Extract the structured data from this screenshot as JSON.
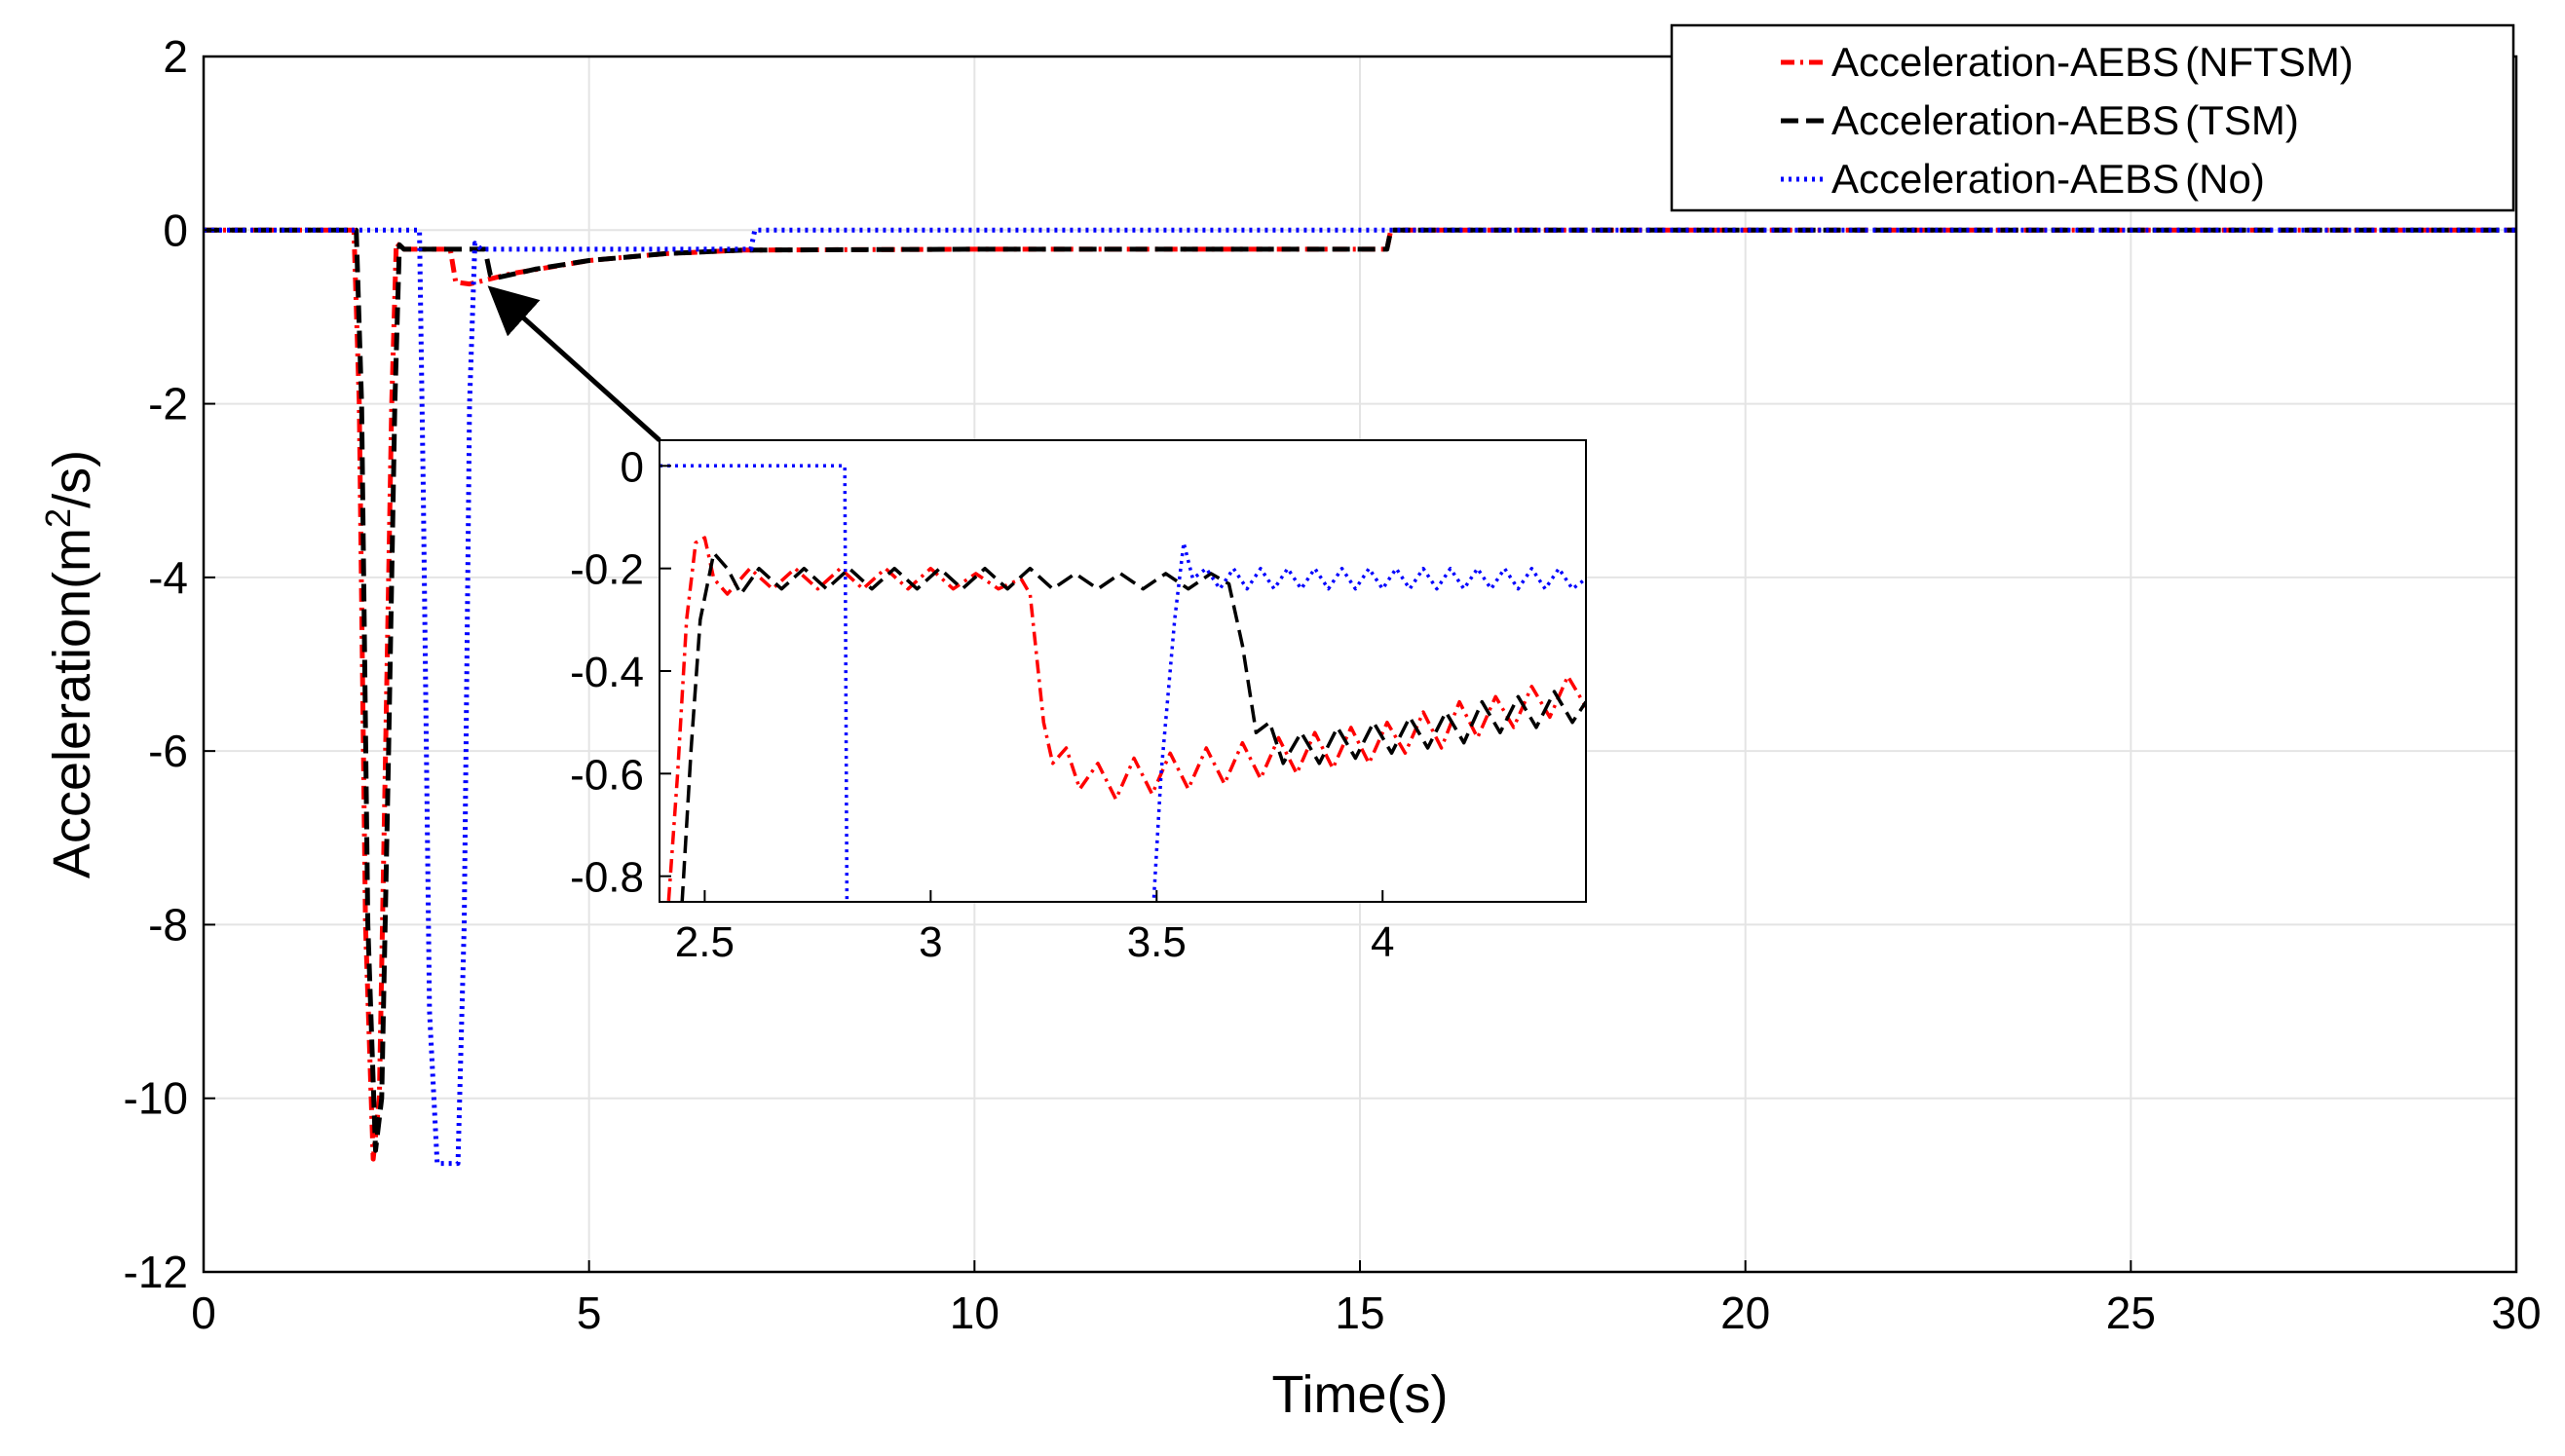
{
  "chart_data": {
    "type": "line",
    "title": "",
    "xlabel": "Time(s)",
    "ylabel_base": "Acceleration(m",
    "ylabel_sup": "2",
    "ylabel_tail": "/s)",
    "xlim": [
      0,
      30
    ],
    "ylim": [
      -12,
      2
    ],
    "xticks": [
      0,
      5,
      10,
      15,
      20,
      25,
      30
    ],
    "yticks": [
      -12,
      -10,
      -8,
      -6,
      -4,
      -2,
      0,
      2
    ],
    "grid": true,
    "legend_position": "top-right",
    "legend": {
      "s1_name": "Acceleration-AEBS",
      "s1_suffix": "(NFTSM)",
      "s2_name": "Acceleration-AEBS",
      "s2_suffix": "(TSM)",
      "s3_name": "Acceleration-AEBS",
      "s3_suffix": "(No)"
    },
    "series": [
      {
        "name": "Acceleration-AEBS(NFTSM)",
        "color": "#ff0000",
        "style": "dash-dot",
        "points": [
          [
            0,
            0
          ],
          [
            1.95,
            0
          ],
          [
            2.02,
            -2
          ],
          [
            2.1,
            -8
          ],
          [
            2.2,
            -10.7
          ],
          [
            2.28,
            -10
          ],
          [
            2.36,
            -6
          ],
          [
            2.44,
            -2
          ],
          [
            2.5,
            -0.15
          ],
          [
            2.6,
            -0.22
          ],
          [
            3.2,
            -0.22
          ],
          [
            3.27,
            -0.6
          ],
          [
            3.45,
            -0.62
          ],
          [
            4,
            -0.5
          ],
          [
            5,
            -0.35
          ],
          [
            6,
            -0.27
          ],
          [
            7,
            -0.23
          ],
          [
            10,
            -0.22
          ],
          [
            15.35,
            -0.22
          ],
          [
            15.4,
            0
          ],
          [
            30,
            0
          ]
        ]
      },
      {
        "name": "Acceleration-AEBS(TSM)",
        "color": "#000000",
        "style": "dashed",
        "points": [
          [
            0,
            0
          ],
          [
            1.98,
            0
          ],
          [
            2.05,
            -2
          ],
          [
            2.13,
            -8
          ],
          [
            2.23,
            -10.6
          ],
          [
            2.31,
            -10
          ],
          [
            2.4,
            -6
          ],
          [
            2.48,
            -2
          ],
          [
            2.54,
            -0.17
          ],
          [
            2.6,
            -0.22
          ],
          [
            3.65,
            -0.22
          ],
          [
            3.72,
            -0.52
          ],
          [
            3.8,
            -0.55
          ],
          [
            4.3,
            -0.45
          ],
          [
            5,
            -0.35
          ],
          [
            6,
            -0.27
          ],
          [
            7,
            -0.23
          ],
          [
            10,
            -0.22
          ],
          [
            15.35,
            -0.22
          ],
          [
            15.4,
            0
          ],
          [
            30,
            0
          ]
        ]
      },
      {
        "name": "Acceleration-AEBS(No)",
        "color": "#0000ff",
        "style": "dotted",
        "points": [
          [
            0,
            0
          ],
          [
            2.8,
            0
          ],
          [
            2.85,
            -3
          ],
          [
            2.93,
            -9
          ],
          [
            3.03,
            -10.75
          ],
          [
            3.3,
            -10.75
          ],
          [
            3.38,
            -8
          ],
          [
            3.45,
            -2
          ],
          [
            3.52,
            -0.15
          ],
          [
            3.6,
            -0.22
          ],
          [
            7.1,
            -0.22
          ],
          [
            7.15,
            0
          ],
          [
            30,
            0
          ]
        ]
      }
    ],
    "inset": {
      "xlim": [
        2.4,
        4.45
      ],
      "ylim": [
        -0.85,
        0.05
      ],
      "xticks": [
        2.5,
        3,
        3.5,
        4
      ],
      "xtick_labels": [
        "2.5",
        "3",
        "3.5",
        "4"
      ],
      "yticks": [
        0,
        -0.2,
        -0.4,
        -0.6,
        -0.8
      ],
      "ytick_labels": [
        "0",
        "-0.2",
        "-0.4",
        "-0.6",
        "-0.8"
      ],
      "grid": false,
      "series": [
        {
          "name": "Acceleration-AEBS(NFTSM)",
          "color": "#ff0000",
          "style": "dash-dot",
          "points": [
            [
              2.4,
              -0.9
            ],
            [
              2.42,
              -0.85
            ],
            [
              2.44,
              -0.6
            ],
            [
              2.46,
              -0.3
            ],
            [
              2.48,
              -0.15
            ],
            [
              2.5,
              -0.14
            ],
            [
              2.52,
              -0.22
            ],
            [
              2.55,
              -0.25
            ],
            [
              2.6,
              -0.2
            ],
            [
              2.65,
              -0.24
            ],
            [
              2.7,
              -0.2
            ],
            [
              2.75,
              -0.24
            ],
            [
              2.8,
              -0.2
            ],
            [
              2.85,
              -0.24
            ],
            [
              2.9,
              -0.2
            ],
            [
              2.95,
              -0.24
            ],
            [
              3.0,
              -0.2
            ],
            [
              3.05,
              -0.24
            ],
            [
              3.1,
              -0.21
            ],
            [
              3.15,
              -0.24
            ],
            [
              3.2,
              -0.22
            ],
            [
              3.22,
              -0.25
            ],
            [
              3.25,
              -0.5
            ],
            [
              3.27,
              -0.58
            ],
            [
              3.3,
              -0.55
            ],
            [
              3.33,
              -0.63
            ],
            [
              3.37,
              -0.58
            ],
            [
              3.41,
              -0.65
            ],
            [
              3.45,
              -0.57
            ],
            [
              3.49,
              -0.64
            ],
            [
              3.53,
              -0.56
            ],
            [
              3.57,
              -0.63
            ],
            [
              3.61,
              -0.55
            ],
            [
              3.65,
              -0.62
            ],
            [
              3.69,
              -0.54
            ],
            [
              3.73,
              -0.61
            ],
            [
              3.77,
              -0.53
            ],
            [
              3.81,
              -0.6
            ],
            [
              3.85,
              -0.52
            ],
            [
              3.89,
              -0.59
            ],
            [
              3.93,
              -0.51
            ],
            [
              3.97,
              -0.58
            ],
            [
              4.01,
              -0.5
            ],
            [
              4.05,
              -0.56
            ],
            [
              4.09,
              -0.48
            ],
            [
              4.13,
              -0.55
            ],
            [
              4.17,
              -0.46
            ],
            [
              4.21,
              -0.53
            ],
            [
              4.25,
              -0.45
            ],
            [
              4.29,
              -0.51
            ],
            [
              4.33,
              -0.43
            ],
            [
              4.37,
              -0.49
            ],
            [
              4.41,
              -0.41
            ],
            [
              4.45,
              -0.47
            ]
          ]
        },
        {
          "name": "Acceleration-AEBS(TSM)",
          "color": "#000000",
          "style": "dashed",
          "points": [
            [
              2.43,
              -0.9
            ],
            [
              2.45,
              -0.85
            ],
            [
              2.47,
              -0.55
            ],
            [
              2.49,
              -0.3
            ],
            [
              2.52,
              -0.17
            ],
            [
              2.55,
              -0.2
            ],
            [
              2.58,
              -0.25
            ],
            [
              2.62,
              -0.2
            ],
            [
              2.67,
              -0.24
            ],
            [
              2.72,
              -0.2
            ],
            [
              2.77,
              -0.24
            ],
            [
              2.82,
              -0.2
            ],
            [
              2.87,
              -0.24
            ],
            [
              2.92,
              -0.2
            ],
            [
              2.97,
              -0.24
            ],
            [
              3.02,
              -0.2
            ],
            [
              3.07,
              -0.24
            ],
            [
              3.12,
              -0.2
            ],
            [
              3.17,
              -0.24
            ],
            [
              3.22,
              -0.2
            ],
            [
              3.27,
              -0.24
            ],
            [
              3.32,
              -0.21
            ],
            [
              3.37,
              -0.24
            ],
            [
              3.42,
              -0.21
            ],
            [
              3.47,
              -0.24
            ],
            [
              3.52,
              -0.21
            ],
            [
              3.57,
              -0.24
            ],
            [
              3.62,
              -0.21
            ],
            [
              3.66,
              -0.23
            ],
            [
              3.69,
              -0.35
            ],
            [
              3.72,
              -0.52
            ],
            [
              3.75,
              -0.5
            ],
            [
              3.78,
              -0.58
            ],
            [
              3.82,
              -0.52
            ],
            [
              3.86,
              -0.58
            ],
            [
              3.9,
              -0.51
            ],
            [
              3.94,
              -0.57
            ],
            [
              3.98,
              -0.5
            ],
            [
              4.02,
              -0.56
            ],
            [
              4.06,
              -0.49
            ],
            [
              4.1,
              -0.55
            ],
            [
              4.14,
              -0.48
            ],
            [
              4.18,
              -0.54
            ],
            [
              4.22,
              -0.46
            ],
            [
              4.26,
              -0.52
            ],
            [
              4.3,
              -0.45
            ],
            [
              4.34,
              -0.51
            ],
            [
              4.38,
              -0.44
            ],
            [
              4.42,
              -0.5
            ],
            [
              4.45,
              -0.46
            ]
          ]
        },
        {
          "name": "Acceleration-AEBS(No)",
          "color": "#0000ff",
          "style": "dotted",
          "points": [
            [
              2.4,
              0
            ],
            [
              2.81,
              0
            ],
            [
              2.815,
              -0.9
            ],
            [
              3.49,
              -0.9
            ],
            [
              3.51,
              -0.6
            ],
            [
              3.54,
              -0.3
            ],
            [
              3.56,
              -0.15
            ],
            [
              3.58,
              -0.22
            ],
            [
              3.61,
              -0.2
            ],
            [
              3.64,
              -0.24
            ],
            [
              3.67,
              -0.2
            ],
            [
              3.7,
              -0.24
            ],
            [
              3.73,
              -0.2
            ],
            [
              3.76,
              -0.24
            ],
            [
              3.79,
              -0.2
            ],
            [
              3.82,
              -0.24
            ],
            [
              3.85,
              -0.2
            ],
            [
              3.88,
              -0.24
            ],
            [
              3.91,
              -0.2
            ],
            [
              3.94,
              -0.24
            ],
            [
              3.97,
              -0.2
            ],
            [
              4.0,
              -0.24
            ],
            [
              4.03,
              -0.2
            ],
            [
              4.06,
              -0.24
            ],
            [
              4.09,
              -0.2
            ],
            [
              4.12,
              -0.24
            ],
            [
              4.15,
              -0.2
            ],
            [
              4.18,
              -0.24
            ],
            [
              4.21,
              -0.2
            ],
            [
              4.24,
              -0.24
            ],
            [
              4.27,
              -0.2
            ],
            [
              4.3,
              -0.24
            ],
            [
              4.33,
              -0.2
            ],
            [
              4.36,
              -0.24
            ],
            [
              4.39,
              -0.2
            ],
            [
              4.42,
              -0.24
            ],
            [
              4.45,
              -0.22
            ]
          ]
        }
      ]
    }
  }
}
